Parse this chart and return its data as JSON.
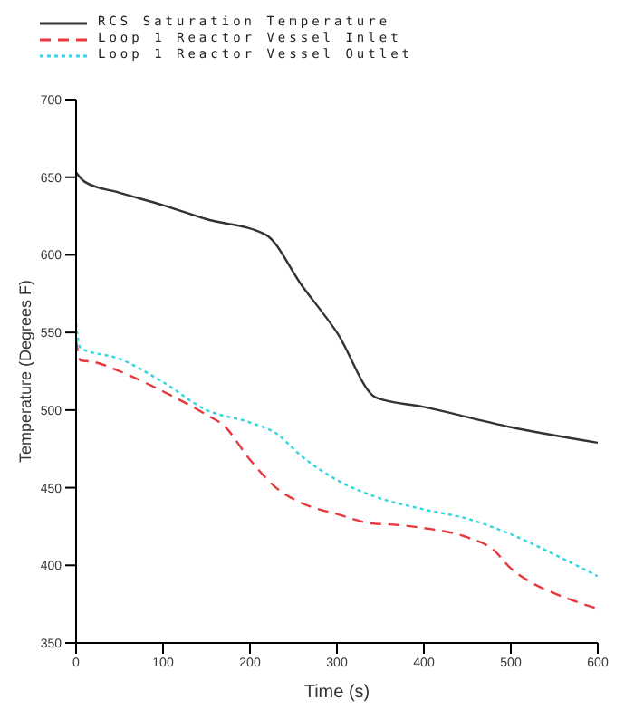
{
  "chart_data": {
    "type": "line",
    "xlabel": "Time   (s)",
    "ylabel": "Temperature  (Degrees F)",
    "xlim": [
      0,
      600
    ],
    "ylim": [
      350,
      700
    ],
    "xticks": [
      0,
      100,
      200,
      300,
      400,
      500,
      600
    ],
    "yticks": [
      350,
      400,
      450,
      500,
      550,
      600,
      650,
      700
    ],
    "grid": false,
    "legend": "top left",
    "marker": "none",
    "series": [
      {
        "name": "RCS Saturation Temperature",
        "color": "#333333",
        "line_style": "solid",
        "x": [
          0,
          10,
          50,
          100,
          150,
          218,
          260,
          300,
          345,
          400,
          500,
          600
        ],
        "values": [
          653,
          647,
          640,
          632,
          623,
          613,
          580,
          550,
          508,
          502,
          489,
          479
        ]
      },
      {
        "name": "Loop 1 Reactor Vessel Inlet",
        "color": "#e8383d",
        "line_style": "dashed",
        "x": [
          0,
          5,
          20,
          50,
          100,
          150,
          170,
          200,
          230,
          260,
          300,
          340,
          370,
          400,
          450,
          480,
          500,
          520,
          550,
          600
        ],
        "values": [
          545,
          532,
          531,
          525,
          512,
          497,
          490,
          468,
          450,
          440,
          433,
          427,
          426,
          424,
          418,
          410,
          398,
          390,
          382,
          372
        ]
      },
      {
        "name": "Loop 1 Reactor Vessel Outlet",
        "color": "#33d6e0",
        "line_style": "dotted",
        "x": [
          0,
          5,
          50,
          100,
          150,
          200,
          230,
          260,
          300,
          340,
          400,
          450,
          500,
          550,
          600
        ],
        "values": [
          556,
          540,
          533,
          518,
          500,
          492,
          485,
          470,
          455,
          445,
          436,
          430,
          420,
          407,
          393
        ]
      }
    ]
  }
}
